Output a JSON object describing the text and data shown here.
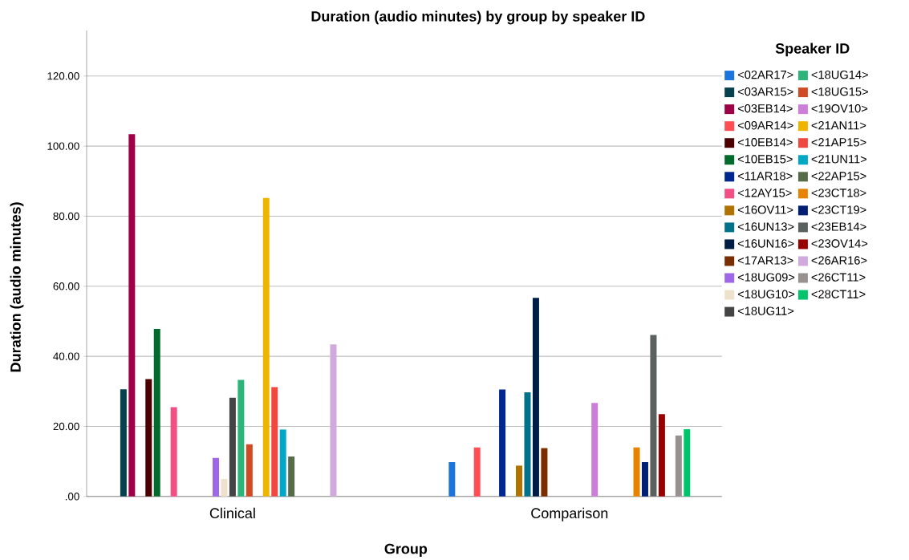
{
  "chart_data": {
    "type": "bar",
    "title": "Duration (audio minutes) by group by speaker ID",
    "xlabel": "Group",
    "ylabel": "Duration (audio minutes)",
    "legend_title": "Speaker ID",
    "categories": [
      "Clinical",
      "Comparison"
    ],
    "series": [
      {
        "name": "<02AR17>",
        "color": "#1a75dc",
        "values": [
          null,
          9.8
        ]
      },
      {
        "name": "<03AR15>",
        "color": "#07404f",
        "values": [
          30.6,
          null
        ]
      },
      {
        "name": "<03EB14>",
        "color": "#9e0048",
        "values": [
          103.4,
          null
        ]
      },
      {
        "name": "<09AR14>",
        "color": "#ff4f55",
        "values": [
          null,
          14.0
        ]
      },
      {
        "name": "<10EB14>",
        "color": "#4c0000",
        "values": [
          33.5,
          null
        ]
      },
      {
        "name": "<10EB15>",
        "color": "#006b2b",
        "values": [
          47.8,
          null
        ]
      },
      {
        "name": "<11AR18>",
        "color": "#00268f",
        "values": [
          null,
          30.5
        ]
      },
      {
        "name": "<12AY15>",
        "color": "#f24f85",
        "values": [
          25.5,
          null
        ]
      },
      {
        "name": "<16OV11>",
        "color": "#b07300",
        "values": [
          null,
          8.8
        ]
      },
      {
        "name": "<16UN13>",
        "color": "#00738a",
        "values": [
          null,
          29.7
        ]
      },
      {
        "name": "<16UN16>",
        "color": "#001e45",
        "values": [
          null,
          56.7
        ]
      },
      {
        "name": "<17AR13>",
        "color": "#7a2e00",
        "values": [
          null,
          13.8
        ]
      },
      {
        "name": "<18UG09>",
        "color": "#a066e8",
        "values": [
          11.0,
          null
        ]
      },
      {
        "name": "<18UG10>",
        "color": "#efe2cc",
        "values": [
          5.0,
          null
        ]
      },
      {
        "name": "<18UG11>",
        "color": "#444444",
        "values": [
          28.2,
          null
        ]
      },
      {
        "name": "<18UG14>",
        "color": "#2db47a",
        "values": [
          33.3,
          null
        ]
      },
      {
        "name": "<18UG15>",
        "color": "#d04a26",
        "values": [
          14.9,
          null
        ]
      },
      {
        "name": "<19OV10>",
        "color": "#cc7ed8",
        "values": [
          null,
          26.7
        ]
      },
      {
        "name": "<21AN11>",
        "color": "#efb400",
        "values": [
          85.2,
          null
        ]
      },
      {
        "name": "<21AP15>",
        "color": "#f0483f",
        "values": [
          31.2,
          null
        ]
      },
      {
        "name": "<21UN11>",
        "color": "#00a8c6",
        "values": [
          19.1,
          null
        ]
      },
      {
        "name": "<22AP15>",
        "color": "#566b48",
        "values": [
          11.4,
          null
        ]
      },
      {
        "name": "<23CT18>",
        "color": "#e88300",
        "values": [
          null,
          14.0
        ]
      },
      {
        "name": "<23CT19>",
        "color": "#001f75",
        "values": [
          null,
          9.8
        ]
      },
      {
        "name": "<23EB14>",
        "color": "#5b615f",
        "values": [
          null,
          46.1
        ]
      },
      {
        "name": "<23OV14>",
        "color": "#990000",
        "values": [
          null,
          23.5
        ]
      },
      {
        "name": "<26AR16>",
        "color": "#d1aadd",
        "values": [
          43.4,
          null
        ]
      },
      {
        "name": "<26CT11>",
        "color": "#979190",
        "values": [
          null,
          17.4
        ]
      },
      {
        "name": "<28CT11>",
        "color": "#00c46b",
        "values": [
          null,
          19.2
        ]
      }
    ],
    "ylim": [
      0,
      133
    ],
    "yticks": [
      {
        "value": 0,
        "label": ".00"
      },
      {
        "value": 20,
        "label": "20.00"
      },
      {
        "value": 40,
        "label": "40.00"
      },
      {
        "value": 60,
        "label": "60.00"
      },
      {
        "value": 80,
        "label": "80.00"
      },
      {
        "value": 100,
        "label": "100.00"
      },
      {
        "value": 120,
        "label": "120.00"
      }
    ],
    "grid": "y",
    "legend": "right"
  }
}
